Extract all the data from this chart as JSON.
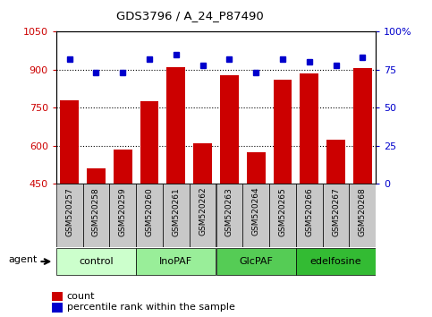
{
  "title": "GDS3796 / A_24_P87490",
  "samples": [
    "GSM520257",
    "GSM520258",
    "GSM520259",
    "GSM520260",
    "GSM520261",
    "GSM520262",
    "GSM520263",
    "GSM520264",
    "GSM520265",
    "GSM520266",
    "GSM520267",
    "GSM520268"
  ],
  "counts": [
    780,
    510,
    585,
    775,
    910,
    610,
    878,
    575,
    862,
    885,
    625,
    905
  ],
  "percentile_ranks": [
    82,
    73,
    73,
    82,
    85,
    78,
    82,
    73,
    82,
    80,
    78,
    83
  ],
  "bar_color": "#cc0000",
  "dot_color": "#0000cc",
  "ylim_left": [
    450,
    1050
  ],
  "ylim_right": [
    0,
    100
  ],
  "yticks_left": [
    450,
    600,
    750,
    900,
    1050
  ],
  "yticks_right": [
    0,
    25,
    50,
    75,
    100
  ],
  "groups": [
    {
      "label": "control",
      "start": 0,
      "end": 3,
      "color": "#ccffcc"
    },
    {
      "label": "InoPAF",
      "start": 3,
      "end": 6,
      "color": "#99ee99"
    },
    {
      "label": "GlcPAF",
      "start": 6,
      "end": 9,
      "color": "#55cc55"
    },
    {
      "label": "edelfosine",
      "start": 9,
      "end": 12,
      "color": "#33bb33"
    }
  ],
  "sample_box_color": "#c8c8c8",
  "agent_label": "agent",
  "legend_count_label": "count",
  "legend_pct_label": "percentile rank within the sample",
  "tick_color_left": "#cc0000",
  "tick_color_right": "#0000cc"
}
